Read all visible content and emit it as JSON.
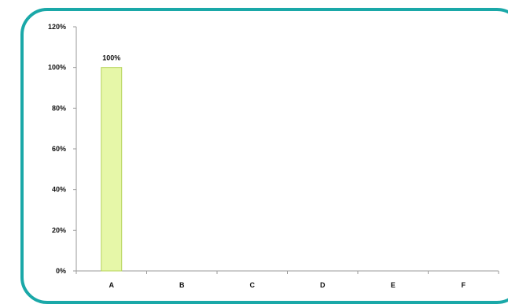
{
  "chart_data": {
    "type": "bar",
    "categories": [
      "A",
      "B",
      "C",
      "D",
      "E",
      "F"
    ],
    "values": [
      1.0,
      0,
      0,
      0,
      0,
      0
    ],
    "value_labels": [
      "100%",
      "",
      "",
      "",
      "",
      ""
    ],
    "ylim": [
      0,
      1.2
    ],
    "yticks": [
      0,
      0.2,
      0.4,
      0.6,
      0.8,
      1.0,
      1.2
    ],
    "ytick_labels": [
      "0%",
      "20%",
      "40%",
      "60%",
      "80%",
      "100%",
      "120%"
    ],
    "grid": false,
    "legend": "none"
  },
  "colors": {
    "frame": "#1aa8a8",
    "bar_fill": "#e6f7a8",
    "bar_stroke": "#b5d35a",
    "axis": "#9a9a9a"
  }
}
